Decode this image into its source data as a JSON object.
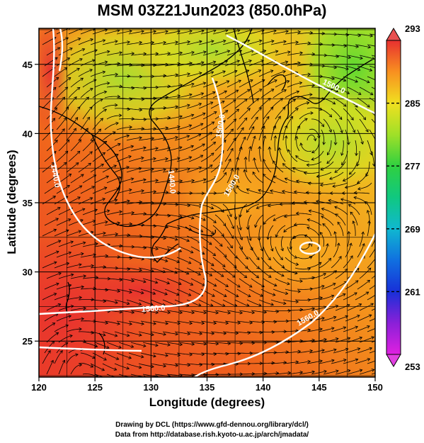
{
  "title": "MSM 03Z21Jun2023 (850.0hPa)",
  "axes": {
    "xlabel": "Longitude (degrees)",
    "ylabel": "Latitude  (degrees)",
    "xticks": [
      "120",
      "125",
      "130",
      "135",
      "140",
      "145",
      "150"
    ],
    "yticks": [
      "25",
      "30",
      "35",
      "40",
      "45"
    ],
    "xlim": [
      120,
      150
    ],
    "ylim": [
      22.4,
      47.6
    ]
  },
  "colorbar": {
    "ticks": [
      "293",
      "285",
      "277",
      "269",
      "261",
      "253"
    ],
    "min": 253,
    "max": 293,
    "colors": [
      "#e020e0",
      "#7a20d8",
      "#1830d8",
      "#1090e0",
      "#10c8c0",
      "#20d060",
      "#70e030",
      "#c8e820",
      "#f8d020",
      "#f89820",
      "#f05a18",
      "#e83030"
    ]
  },
  "contours": {
    "labels": [
      "1440.0",
      "1440.0",
      "1500.0",
      "1500.0",
      "1560.0",
      "1560.0",
      "1500.0"
    ],
    "color": "#ffffff"
  },
  "credits": {
    "line1": "Drawing by DCL (https://www.gfd-dennou.org/library/dcl/)",
    "line2": "Data from http://database.rish.kyoto-u.ac.jp/arch/jmadata/"
  }
}
